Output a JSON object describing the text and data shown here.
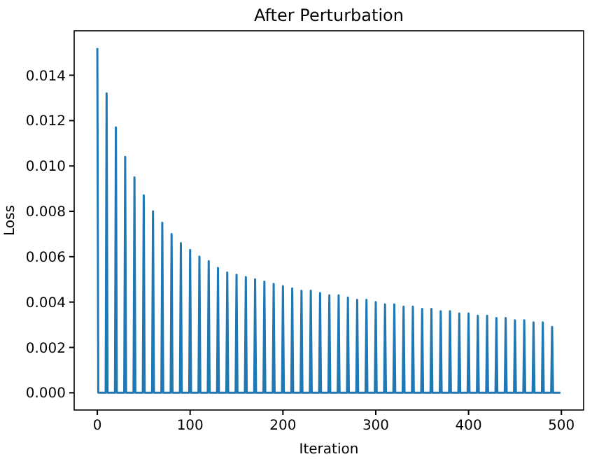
{
  "chart_data": {
    "type": "line",
    "title": "After Perturbation",
    "xlabel": "Iteration",
    "ylabel": "Loss",
    "xlim": [
      -24.95,
      523.95
    ],
    "xticks": [
      0,
      100,
      200,
      300,
      400,
      500
    ],
    "ylim": [
      -0.00076,
      0.01596
    ],
    "yticks": [
      {
        "value": 0,
        "label": "0.000"
      },
      {
        "value": 0.002,
        "label": "0.002"
      },
      {
        "value": 0.004,
        "label": "0.004"
      },
      {
        "value": 0.006,
        "label": "0.006"
      },
      {
        "value": 0.008,
        "label": "0.008"
      },
      {
        "value": 0.01,
        "label": "0.010"
      },
      {
        "value": 0.012,
        "label": "0.012"
      },
      {
        "value": 0.014,
        "label": "0.014"
      }
    ],
    "grid": false,
    "marker": "none",
    "line_style": "solid",
    "series": [
      {
        "color": "#1f77b4",
        "x": [
          0,
          1,
          9,
          10,
          11,
          19,
          20,
          21,
          29,
          30,
          31,
          39,
          40,
          41,
          49,
          50,
          51,
          59,
          60,
          61,
          69,
          70,
          71,
          79,
          80,
          81,
          89,
          90,
          91,
          99,
          100,
          101,
          109,
          110,
          111,
          119,
          120,
          121,
          129,
          130,
          131,
          139,
          140,
          141,
          149,
          150,
          151,
          159,
          160,
          161,
          169,
          170,
          171,
          179,
          180,
          181,
          189,
          190,
          191,
          199,
          200,
          201,
          209,
          210,
          211,
          219,
          220,
          221,
          229,
          230,
          231,
          239,
          240,
          241,
          249,
          250,
          251,
          259,
          260,
          261,
          269,
          270,
          271,
          279,
          280,
          281,
          289,
          290,
          291,
          299,
          300,
          301,
          309,
          310,
          311,
          319,
          320,
          321,
          329,
          330,
          331,
          339,
          340,
          341,
          349,
          350,
          351,
          359,
          360,
          361,
          369,
          370,
          371,
          379,
          380,
          381,
          389,
          390,
          391,
          399,
          400,
          401,
          409,
          410,
          411,
          419,
          420,
          421,
          429,
          430,
          431,
          439,
          440,
          441,
          449,
          450,
          451,
          459,
          460,
          461,
          469,
          470,
          471,
          479,
          480,
          481,
          489,
          490,
          491,
          499
        ],
        "values": [
          0.0152,
          0,
          0,
          0.0132,
          0,
          0,
          0.0117,
          0,
          0,
          0.0104,
          0,
          0,
          0.0095,
          0,
          0,
          0.0087,
          0,
          0,
          0.008,
          0,
          0,
          0.0075,
          0,
          0,
          0.007,
          0,
          0,
          0.0066,
          0,
          0,
          0.0063,
          0,
          0,
          0.006,
          0,
          0,
          0.0058,
          0,
          0,
          0.0055,
          0,
          0,
          0.0053,
          0,
          0,
          0.0052,
          0,
          0,
          0.0051,
          0,
          0,
          0.005,
          0,
          0,
          0.0049,
          0,
          0,
          0.0048,
          0,
          0,
          0.0047,
          0,
          0,
          0.0046,
          0,
          0,
          0.0045,
          0,
          0,
          0.0045,
          0,
          0,
          0.0044,
          0,
          0,
          0.0043,
          0,
          0,
          0.0043,
          0,
          0,
          0.0042,
          0,
          0,
          0.0041,
          0,
          0,
          0.0041,
          0,
          0,
          0.004,
          0,
          0,
          0.0039,
          0,
          0,
          0.0039,
          0,
          0,
          0.0038,
          0,
          0,
          0.0038,
          0,
          0,
          0.0037,
          0,
          0,
          0.0037,
          0,
          0,
          0.0036,
          0,
          0,
          0.0036,
          0,
          0,
          0.0035,
          0,
          0,
          0.0035,
          0,
          0,
          0.0034,
          0,
          0,
          0.0034,
          0,
          0,
          0.0033,
          0,
          0,
          0.0033,
          0,
          0,
          0.0032,
          0,
          0,
          0.0032,
          0,
          0,
          0.0031,
          0,
          0,
          0.0031,
          0,
          0,
          0.0029,
          0,
          0
        ]
      }
    ]
  }
}
